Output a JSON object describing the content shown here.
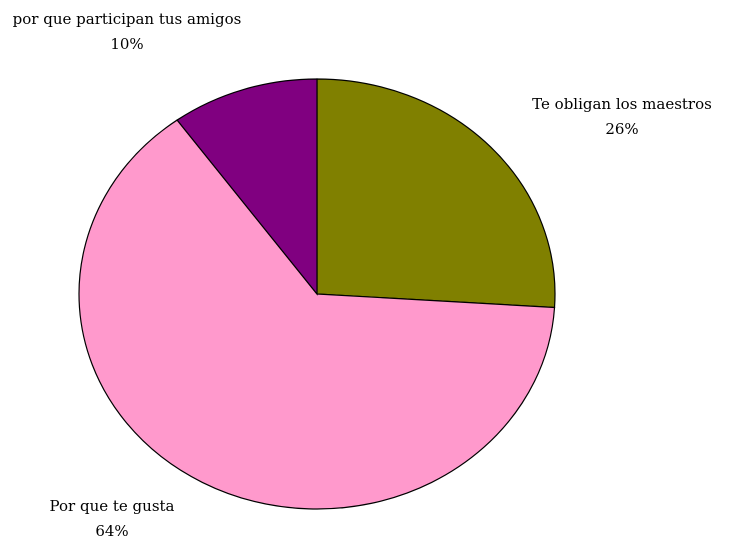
{
  "chart_data": {
    "type": "pie",
    "categories": [
      "Te obligan los maestros",
      "Por que te gusta",
      "por que participan tus amigos"
    ],
    "values": [
      26,
      64,
      10
    ],
    "value_labels": [
      "26%",
      "64%",
      "10%"
    ],
    "colors": [
      "#808000",
      "#ff99cc",
      "#800080"
    ]
  }
}
